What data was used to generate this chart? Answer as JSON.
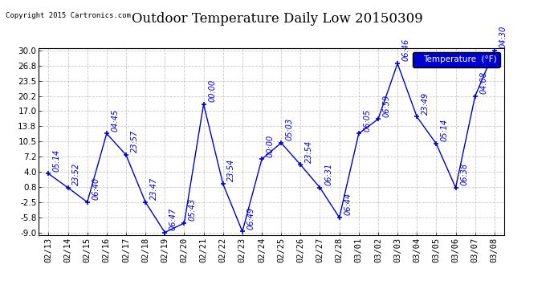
{
  "title": "Outdoor Temperature Daily Low 20150309",
  "copyright": "Copyright 2015 Cartronics.com",
  "legend_label": "Temperature  (°F)",
  "dates": [
    "02/13",
    "02/14",
    "02/15",
    "02/16",
    "02/17",
    "02/18",
    "02/19",
    "02/20",
    "02/21",
    "02/22",
    "02/23",
    "02/24",
    "02/25",
    "02/26",
    "02/27",
    "02/28",
    "03/01",
    "03/02",
    "03/03",
    "03/04",
    "03/05",
    "03/06",
    "03/07",
    "03/08"
  ],
  "values": [
    3.6,
    0.6,
    -2.5,
    12.2,
    7.6,
    -2.5,
    -9.0,
    -7.0,
    18.5,
    1.4,
    -8.8,
    6.7,
    10.2,
    5.5,
    0.6,
    -5.8,
    12.2,
    15.3,
    27.2,
    15.8,
    10.0,
    0.6,
    20.2,
    30.0
  ],
  "time_labels": [
    "05:14",
    "23:52",
    "06:40",
    "04:45",
    "23:57",
    "23:47",
    "06:47",
    "05:43",
    "00:00",
    "23:54",
    "06:49",
    "00:00",
    "05:03",
    "23:54",
    "06:31",
    "06:44",
    "06:05",
    "06:59",
    "06:46",
    "23:49",
    "05:14",
    "06:38",
    "04:08",
    "04:30"
  ],
  "ylim": [
    -9.0,
    30.0
  ],
  "yticks": [
    30.0,
    26.8,
    23.5,
    20.2,
    17.0,
    13.8,
    10.5,
    7.2,
    4.0,
    0.8,
    -2.5,
    -5.8,
    -9.0
  ],
  "line_color": "#0000cc",
  "marker_color": "#0000cc",
  "bg_color": "#ffffff",
  "grid_color": "#bbbbbb",
  "title_fontsize": 12,
  "axis_fontsize": 7.5,
  "label_fontsize": 7,
  "legend_bg": "#0000cc",
  "legend_fg": "#ffffff"
}
